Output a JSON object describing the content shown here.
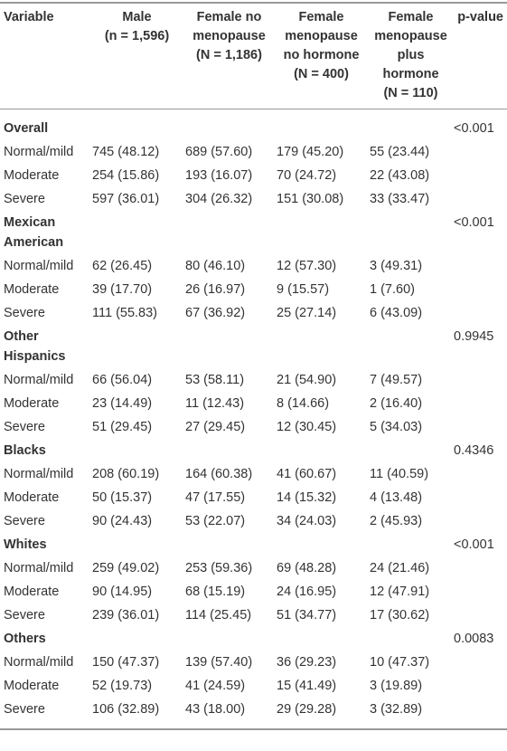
{
  "header": {
    "columns": [
      {
        "lines": [
          "Variable"
        ]
      },
      {
        "lines": [
          "Male",
          "(n = 1,596)"
        ]
      },
      {
        "lines": [
          "Female no",
          "menopause",
          "(N = 1,186)"
        ]
      },
      {
        "lines": [
          "Female",
          "menopause",
          "no hormone",
          "(N = 400)"
        ]
      },
      {
        "lines": [
          "Female",
          "menopause",
          "plus",
          "hormone",
          "(N = 110)"
        ]
      },
      {
        "lines": [
          "p-value"
        ]
      }
    ]
  },
  "groups": [
    {
      "name": "Overall",
      "p_value": "<0.001",
      "rows": [
        {
          "label": "Normal/mild",
          "values": [
            "745 (48.12)",
            "689 (57.60)",
            "179 (45.20)",
            "55 (23.44)"
          ]
        },
        {
          "label": "Moderate",
          "values": [
            "254 (15.86)",
            "193 (16.07)",
            "70 (24.72)",
            "22 (43.08)"
          ]
        },
        {
          "label": "Severe",
          "values": [
            "597 (36.01)",
            "304 (26.32)",
            "151 (30.08)",
            "33 (33.47)"
          ]
        }
      ]
    },
    {
      "name": "Mexican American",
      "p_value": "<0.001",
      "rows": [
        {
          "label": "Normal/mild",
          "values": [
            "62 (26.45)",
            "80 (46.10)",
            "12 (57.30)",
            "3 (49.31)"
          ]
        },
        {
          "label": "Moderate",
          "values": [
            "39 (17.70)",
            "26 (16.97)",
            "9 (15.57)",
            "1 (7.60)"
          ]
        },
        {
          "label": "Severe",
          "values": [
            "111 (55.83)",
            "67 (36.92)",
            "25 (27.14)",
            "6 (43.09)"
          ]
        }
      ]
    },
    {
      "name": "Other Hispanics",
      "p_value": "0.9945",
      "rows": [
        {
          "label": "Normal/mild",
          "values": [
            "66 (56.04)",
            "53 (58.11)",
            "21 (54.90)",
            "7 (49.57)"
          ]
        },
        {
          "label": "Moderate",
          "values": [
            "23 (14.49)",
            "11 (12.43)",
            "8 (14.66)",
            "2 (16.40)"
          ]
        },
        {
          "label": "Severe",
          "values": [
            "51 (29.45)",
            "27 (29.45)",
            "12 (30.45)",
            "5 (34.03)"
          ]
        }
      ]
    },
    {
      "name": "Blacks",
      "p_value": "0.4346",
      "rows": [
        {
          "label": "Normal/mild",
          "values": [
            "208 (60.19)",
            "164 (60.38)",
            "41 (60.67)",
            "11 (40.59)"
          ]
        },
        {
          "label": "Moderate",
          "values": [
            "50 (15.37)",
            "47 (17.55)",
            "14 (15.32)",
            "4 (13.48)"
          ]
        },
        {
          "label": "Severe",
          "values": [
            "90 (24.43)",
            "53 (22.07)",
            "34 (24.03)",
            "2 (45.93)"
          ]
        }
      ]
    },
    {
      "name": "Whites",
      "p_value": "<0.001",
      "rows": [
        {
          "label": "Normal/mild",
          "values": [
            "259 (49.02)",
            "253 (59.36)",
            "69 (48.28)",
            "24 (21.46)"
          ]
        },
        {
          "label": "Moderate",
          "values": [
            "90 (14.95)",
            "68 (15.19)",
            "24 (16.95)",
            "12 (47.91)"
          ]
        },
        {
          "label": "Severe",
          "values": [
            "239 (36.01)",
            "114 (25.45)",
            "51 (34.77)",
            "17 (30.62)"
          ]
        }
      ]
    },
    {
      "name": "Others",
      "p_value": "0.0083",
      "rows": [
        {
          "label": "Normal/mild",
          "values": [
            "150 (47.37)",
            "139 (57.40)",
            "36 (29.23)",
            "10 (47.37)"
          ]
        },
        {
          "label": "Moderate",
          "values": [
            "52 (19.73)",
            "41 (24.59)",
            "15 (41.49)",
            "3 (19.89)"
          ]
        },
        {
          "label": "Severe",
          "values": [
            "106 (32.89)",
            "43 (18.00)",
            "29 (29.28)",
            "3 (32.89)"
          ]
        }
      ]
    }
  ]
}
